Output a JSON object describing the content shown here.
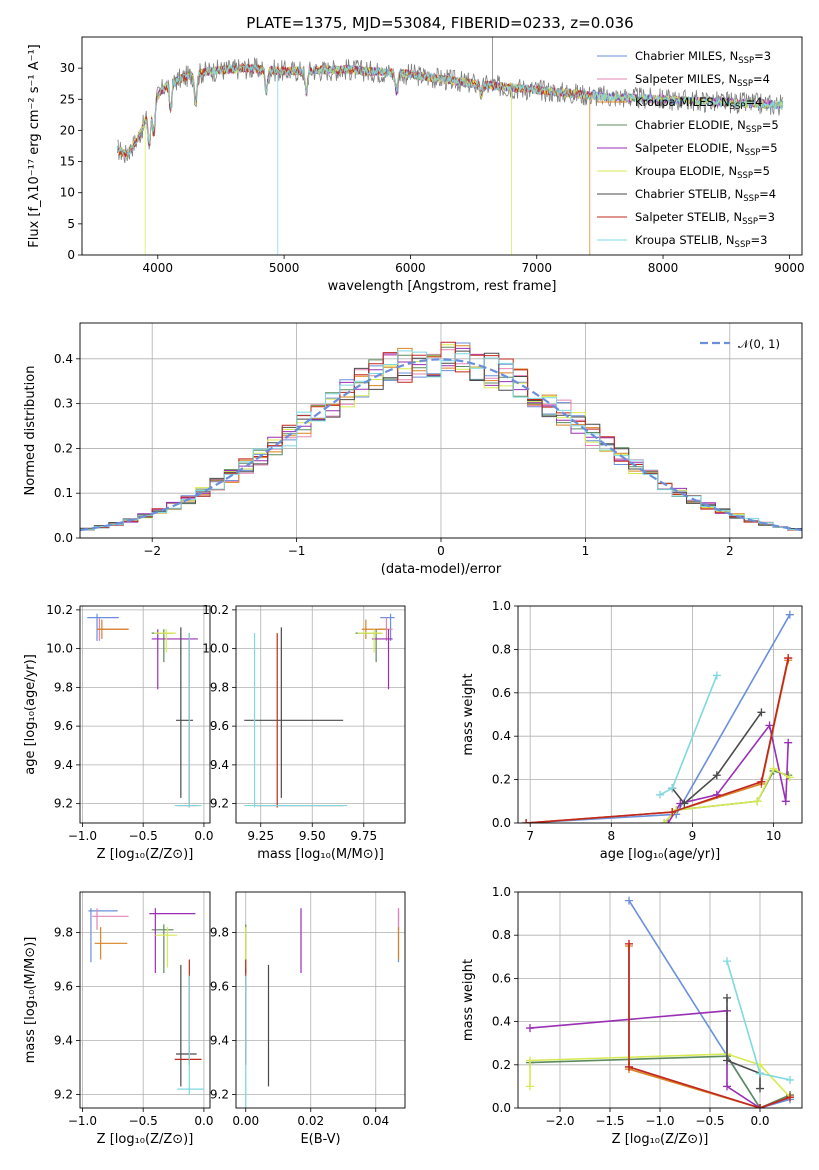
{
  "figure_title": "PLATE=1375, MJD=53084, FIBERID=0233, z=0.036",
  "colors": {
    "Chabrier MILES": "#6a8fdb",
    "Salpeter MILES": "#e584b7",
    "Kroupa MILES": "#d98324",
    "Chabrier ELODIE": "#5c8b5f",
    "Salpeter ELODIE": "#9a2fb5",
    "Kroupa ELODIE": "#d7ea52",
    "Chabrier STELIB": "#4a4a4a",
    "Salpeter STELIB": "#c0281e",
    "Kroupa STELIB": "#7fd8e0"
  },
  "chart_data": [
    {
      "id": "spectrum",
      "type": "line",
      "title": "PLATE=1375, MJD=53084, FIBERID=0233, z=0.036",
      "xlabel": "wavelength [Angstrom, rest frame]",
      "ylabel": "Flux [f_λ10⁻¹⁷ erg cm⁻² s⁻¹ A⁻¹]",
      "xlim": [
        3400,
        9100
      ],
      "ylim": [
        0,
        35
      ],
      "xticks": [
        4000,
        5000,
        6000,
        7000,
        8000,
        9000
      ],
      "yticks": [
        0,
        5,
        10,
        15,
        20,
        25,
        30
      ],
      "grid": false,
      "legend_position": "top-right",
      "legend": [
        {
          "name": "Chabrier MILES",
          "label": "Chabrier MILES, N",
          "sub": "SSP",
          "n": "=3"
        },
        {
          "name": "Salpeter MILES",
          "label": "Salpeter MILES, N",
          "sub": "SSP",
          "n": "=4"
        },
        {
          "name": "Kroupa MILES",
          "label": "Kroupa MILES, N",
          "sub": "SSP",
          "n": "=4"
        },
        {
          "name": "Chabrier ELODIE",
          "label": "Chabrier ELODIE, N",
          "sub": "SSP",
          "n": "=5"
        },
        {
          "name": "Salpeter ELODIE",
          "label": "Salpeter ELODIE, N",
          "sub": "SSP",
          "n": "=5"
        },
        {
          "name": "Kroupa ELODIE",
          "label": "Kroupa ELODIE, N",
          "sub": "SSP",
          "n": "=5"
        },
        {
          "name": "Chabrier STELIB",
          "label": "Chabrier STELIB, N",
          "sub": "SSP",
          "n": "=4"
        },
        {
          "name": "Salpeter STELIB",
          "label": "Salpeter STELIB, N",
          "sub": "SSP",
          "n": "=3"
        },
        {
          "name": "Kroupa STELIB",
          "label": "Kroupa STELIB, N",
          "sub": "SSP",
          "n": "=3"
        }
      ],
      "continuum": [
        [
          3680,
          17
        ],
        [
          3750,
          16
        ],
        [
          3850,
          19
        ],
        [
          3950,
          24
        ],
        [
          4050,
          27
        ],
        [
          4200,
          28.5
        ],
        [
          4400,
          29.5
        ],
        [
          4700,
          30
        ],
        [
          5000,
          29.5
        ],
        [
          5500,
          29.8
        ],
        [
          6000,
          29
        ],
        [
          6500,
          27.5
        ],
        [
          7000,
          26.5
        ],
        [
          7500,
          25.5
        ],
        [
          8000,
          25
        ],
        [
          8500,
          24.5
        ],
        [
          9000,
          24
        ]
      ],
      "features": [
        {
          "name": "Kroupa ELODIE",
          "x": 3900,
          "drop_to": 0
        },
        {
          "name": "Kroupa STELIB",
          "x": 4950,
          "drop_to": 0
        },
        {
          "name": "Kroupa ELODIE",
          "x": 6800,
          "drop_to": 0
        },
        {
          "name": "Kroupa MILES",
          "x": 7420,
          "drop_to": 0
        },
        {
          "name": "Chabrier STELIB",
          "x": 6650,
          "rise_to": 37
        }
      ]
    },
    {
      "id": "residuals",
      "type": "bar",
      "xlabel": "(data-model)/error",
      "ylabel": "Normed distribution",
      "xlim": [
        -2.5,
        2.5
      ],
      "ylim": [
        0,
        0.48
      ],
      "xticks": [
        -2,
        -1,
        0,
        1,
        2
      ],
      "yticks": [
        0.0,
        0.1,
        0.2,
        0.3,
        0.4
      ],
      "grid": true,
      "bin_width": 0.1,
      "legend": [
        {
          "name": "normal",
          "label": "𝒩(0, 1)",
          "color": "#6a8fdb",
          "style": "dashed"
        }
      ],
      "legend_position": "top-right",
      "reference_curve": "normal pdf, mean 0, sigma 1"
    },
    {
      "id": "age-vs-Z",
      "type": "scatter",
      "xlabel": "Z [log₁₀(Z/Z⊙)]",
      "ylabel": "age  [log₁₀(age/yr)]",
      "xlim": [
        -1.02,
        0.05
      ],
      "ylim": [
        9.1,
        10.22
      ],
      "xticks": [
        -1.0,
        -0.5,
        0.0
      ],
      "yticks": [
        9.2,
        9.4,
        9.6,
        9.8,
        10.0,
        10.2
      ],
      "grid": true,
      "points": [
        {
          "name": "Chabrier MILES",
          "x": -0.88,
          "y": 10.16,
          "xerr": [
            0.08,
            0.18
          ],
          "yerr": [
            0.12,
            0.02
          ]
        },
        {
          "name": "Salpeter MILES",
          "x": -0.86,
          "y": 10.1,
          "xerr": [
            0.02,
            0.24
          ],
          "yerr": [
            0.06,
            0.06
          ]
        },
        {
          "name": "Kroupa MILES",
          "x": -0.84,
          "y": 10.1,
          "xerr": [
            0.04,
            0.22
          ],
          "yerr": [
            0.05,
            0.05
          ]
        },
        {
          "name": "Chabrier ELODIE",
          "x": -0.33,
          "y": 10.08,
          "xerr": [
            0.1,
            0.08
          ],
          "yerr": [
            0.15,
            0.02
          ]
        },
        {
          "name": "Salpeter ELODIE",
          "x": -0.38,
          "y": 10.05,
          "xerr": [
            0.05,
            0.33
          ],
          "yerr": [
            0.26,
            0.05
          ]
        },
        {
          "name": "Kroupa ELODIE",
          "x": -0.31,
          "y": 10.08,
          "xerr": [
            0.1,
            0.08
          ],
          "yerr": [
            0.1,
            0.02
          ]
        },
        {
          "name": "Chabrier STELIB",
          "x": -0.19,
          "y": 9.63,
          "xerr": [
            0.04,
            0.1
          ],
          "yerr": [
            0.4,
            0.48
          ]
        },
        {
          "name": "Salpeter STELIB",
          "x": -0.12,
          "y": 9.19,
          "xerr": [
            0.1,
            0.07
          ],
          "yerr": [
            0.01,
            0.89
          ]
        },
        {
          "name": "Kroupa STELIB",
          "x": -0.12,
          "y": 9.19,
          "xerr": [
            0.12,
            0.1
          ],
          "yerr": [
            0.01,
            0.89
          ]
        }
      ]
    },
    {
      "id": "age-vs-mass",
      "type": "scatter",
      "xlabel": "mass [log₁₀(M/M⊙)]",
      "ylabel": "",
      "xlim": [
        9.13,
        9.95
      ],
      "ylim": [
        9.1,
        10.22
      ],
      "xticks": [
        9.25,
        9.5,
        9.75
      ],
      "yticks": [
        9.2,
        9.4,
        9.6,
        9.8,
        10.0,
        10.2
      ],
      "grid": true,
      "points": [
        {
          "name": "Chabrier MILES",
          "x": 9.88,
          "y": 10.16,
          "xerr": [
            0.05,
            0.02
          ],
          "yerr": [
            0.12,
            0.02
          ]
        },
        {
          "name": "Salpeter MILES",
          "x": 9.86,
          "y": 10.1,
          "xerr": [
            0.04,
            0.03
          ],
          "yerr": [
            0.06,
            0.06
          ]
        },
        {
          "name": "Kroupa MILES",
          "x": 9.76,
          "y": 10.1,
          "xerr": [
            0.02,
            0.1
          ],
          "yerr": [
            0.05,
            0.05
          ]
        },
        {
          "name": "Chabrier ELODIE",
          "x": 9.81,
          "y": 10.08,
          "xerr": [
            0.1,
            0.03
          ],
          "yerr": [
            0.15,
            0.02
          ]
        },
        {
          "name": "Salpeter ELODIE",
          "x": 9.87,
          "y": 10.05,
          "xerr": [
            0.08,
            0.02
          ],
          "yerr": [
            0.26,
            0.05
          ]
        },
        {
          "name": "Kroupa ELODIE",
          "x": 9.8,
          "y": 10.08,
          "xerr": [
            0.08,
            0.04
          ],
          "yerr": [
            0.1,
            0.02
          ]
        },
        {
          "name": "Chabrier STELIB",
          "x": 9.35,
          "y": 9.63,
          "xerr": [
            0.18,
            0.3
          ],
          "yerr": [
            0.4,
            0.48
          ]
        },
        {
          "name": "Salpeter STELIB",
          "x": 9.33,
          "y": 9.19,
          "xerr": [
            0.1,
            0.32
          ],
          "yerr": [
            0.01,
            0.89
          ]
        },
        {
          "name": "Kroupa STELIB",
          "x": 9.22,
          "y": 9.19,
          "xerr": [
            0.05,
            0.45
          ],
          "yerr": [
            0.01,
            0.89
          ]
        }
      ]
    },
    {
      "id": "weight-vs-age",
      "type": "line",
      "xlabel": "age  [log₁₀(age/yr)]",
      "ylabel": "mass weight",
      "xlim": [
        6.85,
        10.35
      ],
      "ylim": [
        0,
        1.0
      ],
      "xticks": [
        7,
        8,
        9,
        10
      ],
      "yticks": [
        0.0,
        0.2,
        0.4,
        0.6,
        0.8,
        1.0
      ],
      "grid": true,
      "series": [
        {
          "name": "Chabrier MILES",
          "x": [
            6.95,
            8.8,
            10.2
          ],
          "y": [
            0.0,
            0.04,
            0.96
          ]
        },
        {
          "name": "Salpeter MILES",
          "x": [
            6.95,
            8.75,
            9.85,
            10.18
          ],
          "y": [
            0.0,
            0.05,
            0.19,
            0.76
          ]
        },
        {
          "name": "Kroupa MILES",
          "x": [
            6.95,
            8.75,
            9.85,
            10.18
          ],
          "y": [
            0.0,
            0.05,
            0.18,
            0.75
          ]
        },
        {
          "name": "Chabrier ELODIE",
          "x": [
            8.65,
            8.8,
            9.8,
            10.0,
            10.18
          ],
          "y": [
            0.0,
            0.06,
            0.1,
            0.24,
            0.22
          ]
        },
        {
          "name": "Salpeter ELODIE",
          "x": [
            8.7,
            8.85,
            9.3,
            9.95,
            10.15,
            10.18
          ],
          "y": [
            0.0,
            0.09,
            0.13,
            0.45,
            0.1,
            0.37
          ]
        },
        {
          "name": "Kroupa ELODIE",
          "x": [
            8.65,
            8.8,
            9.8,
            10.0,
            10.2
          ],
          "y": [
            0.0,
            0.06,
            0.1,
            0.25,
            0.21
          ]
        },
        {
          "name": "Chabrier STELIB",
          "x": [
            8.75,
            8.9,
            9.3,
            9.85
          ],
          "y": [
            0.16,
            0.09,
            0.22,
            0.51
          ]
        },
        {
          "name": "Salpeter STELIB",
          "x": [
            6.95,
            8.75,
            9.85,
            10.18
          ],
          "y": [
            0.0,
            0.05,
            0.19,
            0.76
          ]
        },
        {
          "name": "Kroupa STELIB",
          "x": [
            8.6,
            8.75,
            9.3
          ],
          "y": [
            0.13,
            0.16,
            0.68
          ]
        }
      ]
    },
    {
      "id": "mass-vs-Z",
      "type": "scatter",
      "xlabel": "Z [log₁₀(Z/Z⊙)]",
      "ylabel": "mass [log₁₀(M/M⊙)]",
      "xlim": [
        -1.02,
        0.05
      ],
      "ylim": [
        9.15,
        9.95
      ],
      "xticks": [
        -1.0,
        -0.5,
        0.0
      ],
      "yticks": [
        9.2,
        9.4,
        9.6,
        9.8
      ],
      "grid": true,
      "points": [
        {
          "name": "Chabrier MILES",
          "x": -0.93,
          "y": 9.88,
          "xerr": [
            0.02,
            0.22
          ],
          "yerr": [
            0.19,
            0.01
          ]
        },
        {
          "name": "Salpeter MILES",
          "x": -0.88,
          "y": 9.86,
          "xerr": [
            0.04,
            0.26
          ],
          "yerr": [
            0.05,
            0.03
          ]
        },
        {
          "name": "Kroupa MILES",
          "x": -0.85,
          "y": 9.76,
          "xerr": [
            0.05,
            0.22
          ],
          "yerr": [
            0.06,
            0.06
          ]
        },
        {
          "name": "Chabrier ELODIE",
          "x": -0.33,
          "y": 9.81,
          "xerr": [
            0.1,
            0.08
          ],
          "yerr": [
            0.16,
            0.02
          ]
        },
        {
          "name": "Salpeter ELODIE",
          "x": -0.4,
          "y": 9.87,
          "xerr": [
            0.05,
            0.33
          ],
          "yerr": [
            0.22,
            0.02
          ]
        },
        {
          "name": "Kroupa ELODIE",
          "x": -0.3,
          "y": 9.79,
          "xerr": [
            0.1,
            0.08
          ],
          "yerr": [
            0.12,
            0.03
          ]
        },
        {
          "name": "Chabrier STELIB",
          "x": -0.19,
          "y": 9.35,
          "xerr": [
            0.04,
            0.13
          ],
          "yerr": [
            0.12,
            0.33
          ]
        },
        {
          "name": "Salpeter STELIB",
          "x": -0.12,
          "y": 9.33,
          "xerr": [
            0.12,
            0.1
          ],
          "yerr": [
            0.02,
            0.37
          ]
        },
        {
          "name": "Kroupa STELIB",
          "x": -0.12,
          "y": 9.22,
          "xerr": [
            0.1,
            0.12
          ],
          "yerr": [
            0.02,
            0.42
          ]
        }
      ]
    },
    {
      "id": "mass-vs-ebv",
      "type": "scatter",
      "xlabel": "E(B-V)",
      "ylabel": "",
      "xlim": [
        -0.003,
        0.049
      ],
      "ylim": [
        9.15,
        9.95
      ],
      "xticks": [
        0.0,
        0.02,
        0.04
      ],
      "yticks": [
        9.2,
        9.4,
        9.6,
        9.8
      ],
      "grid": true,
      "points": [
        {
          "name": "Chabrier MILES",
          "x": 0.047,
          "y": 9.88,
          "yerr": [
            0.19,
            0.01
          ]
        },
        {
          "name": "Salpeter MILES",
          "x": 0.047,
          "y": 9.86,
          "yerr": [
            0.05,
            0.03
          ]
        },
        {
          "name": "Kroupa MILES",
          "x": 0.047,
          "y": 9.76,
          "yerr": [
            0.06,
            0.06
          ]
        },
        {
          "name": "Chabrier ELODIE",
          "x": 0.0,
          "y": 9.81,
          "yerr": [
            0.16,
            0.02
          ]
        },
        {
          "name": "Salpeter ELODIE",
          "x": 0.017,
          "y": 9.87,
          "yerr": [
            0.22,
            0.02
          ]
        },
        {
          "name": "Kroupa ELODIE",
          "x": 0.0,
          "y": 9.79,
          "yerr": [
            0.12,
            0.03
          ]
        },
        {
          "name": "Chabrier STELIB",
          "x": 0.007,
          "y": 9.35,
          "yerr": [
            0.12,
            0.33
          ]
        },
        {
          "name": "Salpeter STELIB",
          "x": 0.0,
          "y": 9.33,
          "yerr": [
            0.02,
            0.37
          ]
        },
        {
          "name": "Kroupa STELIB",
          "x": 0.0,
          "y": 9.22,
          "yerr": [
            0.1,
            0.42
          ]
        }
      ]
    },
    {
      "id": "weight-vs-Z",
      "type": "line",
      "xlabel": "Z [log₁₀(Z/Z⊙)]",
      "ylabel": "mass weight",
      "xlim": [
        -2.42,
        0.42
      ],
      "ylim": [
        0,
        1.0
      ],
      "xticks": [
        -2.0,
        -1.5,
        -1.0,
        -0.5,
        0.0
      ],
      "yticks": [
        0.0,
        0.2,
        0.4,
        0.6,
        0.8,
        1.0
      ],
      "grid": true,
      "series": [
        {
          "name": "Chabrier MILES",
          "x": [
            -1.31,
            0.0,
            0.3
          ],
          "y": [
            0.96,
            0.0,
            0.04
          ]
        },
        {
          "name": "Salpeter MILES",
          "x": [
            -1.31,
            -1.31,
            0.0,
            0.3
          ],
          "y": [
            0.76,
            0.19,
            0.0,
            0.05
          ]
        },
        {
          "name": "Kroupa MILES",
          "x": [
            -1.31,
            -1.31,
            0.0,
            0.3
          ],
          "y": [
            0.75,
            0.18,
            0.0,
            0.06
          ]
        },
        {
          "name": "Chabrier ELODIE",
          "x": [
            -2.3,
            -0.33,
            0.0,
            0.3
          ],
          "y": [
            0.21,
            0.24,
            0.0,
            0.06
          ]
        },
        {
          "name": "Salpeter ELODIE",
          "x": [
            -2.3,
            -0.33,
            -0.33,
            0.0,
            0.3
          ],
          "y": [
            0.37,
            0.45,
            0.1,
            0.0,
            0.05
          ]
        },
        {
          "name": "Kroupa ELODIE",
          "x": [
            -2.3,
            -2.3,
            -0.33,
            0.0,
            0.3
          ],
          "y": [
            0.1,
            0.22,
            0.25,
            0.2,
            0.05
          ]
        },
        {
          "name": "Chabrier STELIB",
          "x": [
            -0.33,
            -0.33,
            0.0,
            0.0
          ],
          "y": [
            0.51,
            0.22,
            0.16,
            0.09
          ]
        },
        {
          "name": "Salpeter STELIB",
          "x": [
            -1.31,
            -1.31,
            0.0,
            0.3
          ],
          "y": [
            0.76,
            0.19,
            0.0,
            0.05
          ]
        },
        {
          "name": "Kroupa STELIB",
          "x": [
            -0.33,
            0.0,
            0.3
          ],
          "y": [
            0.68,
            0.16,
            0.13
          ]
        }
      ]
    }
  ]
}
